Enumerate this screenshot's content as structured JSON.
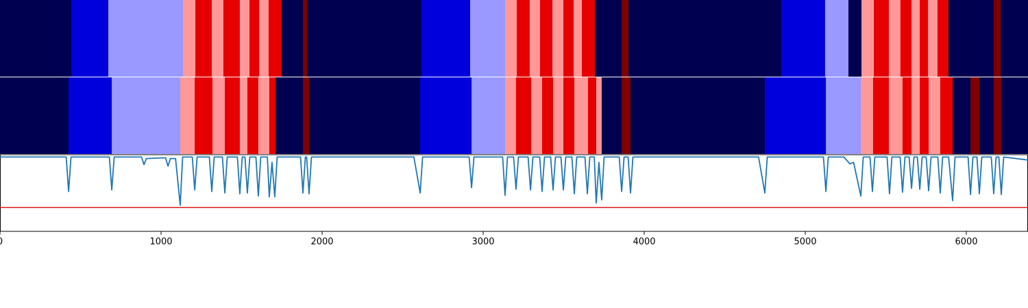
{
  "chart_data": {
    "type": "line",
    "xlim": [
      0,
      6383
    ],
    "xticks": [
      0,
      1000,
      2000,
      3000,
      4000,
      5000,
      6000
    ],
    "ylim": [
      0,
      1
    ],
    "strips": [
      {
        "edges": [
          0,
          443,
          672,
          1136,
          1213,
          1315,
          1387,
          1489,
          1549,
          1609,
          1668,
          1749,
          1881,
          1906,
          2617,
          2919,
          3136,
          3209,
          3289,
          3353,
          3430,
          3498,
          3562,
          3613,
          3694,
          3860,
          3902,
          4851,
          5123,
          5268,
          5349,
          5426,
          5519,
          5591,
          5660,
          5711,
          5762,
          5821,
          5889,
          6170,
          6213,
          6383
        ],
        "colors": [
          "#000050",
          "#0000dd",
          "#9999ff",
          "#ff9999",
          "#e60000",
          "#ff9999",
          "#e60000",
          "#ff9999",
          "#e60000",
          "#ff9999",
          "#e60000",
          "#000050",
          "#800000",
          "#000050",
          "#0000dd",
          "#9999ff",
          "#ff9999",
          "#e60000",
          "#ff9999",
          "#e60000",
          "#ff9999",
          "#e60000",
          "#ff9999",
          "#e60000",
          "#000050",
          "#800000",
          "#000050",
          "#0000dd",
          "#9999ff",
          "#000050",
          "#ff9999",
          "#e60000",
          "#ff9999",
          "#e60000",
          "#ff9999",
          "#e60000",
          "#ff9999",
          "#e60000",
          "#000050",
          "#800000",
          "#000050"
        ]
      },
      {
        "edges": [
          0,
          426,
          694,
          1119,
          1209,
          1319,
          1396,
          1489,
          1536,
          1604,
          1672,
          1711,
          1881,
          1919,
          2609,
          2928,
          3136,
          3204,
          3298,
          3366,
          3434,
          3498,
          3566,
          3651,
          3702,
          3736,
          3860,
          3915,
          4749,
          5128,
          5345,
          5421,
          5519,
          5604,
          5660,
          5711,
          5766,
          5838,
          5915,
          6026,
          6081,
          6170,
          6217,
          6383
        ],
        "colors": [
          "#000050",
          "#0000dd",
          "#9999ff",
          "#ff9999",
          "#e60000",
          "#ff9999",
          "#e60000",
          "#ff9999",
          "#e60000",
          "#ff9999",
          "#e60000",
          "#000050",
          "#800000",
          "#000050",
          "#0000dd",
          "#9999ff",
          "#ff9999",
          "#e60000",
          "#ff9999",
          "#e60000",
          "#ff9999",
          "#e60000",
          "#ff9999",
          "#e60000",
          "#ff9999",
          "#000050",
          "#800000",
          "#000050",
          "#0000dd",
          "#9999ff",
          "#ff9999",
          "#e60000",
          "#ff9999",
          "#e60000",
          "#ff9999",
          "#e60000",
          "#ff9999",
          "#e60000",
          "#000050",
          "#800000",
          "#000050",
          "#800000",
          "#000050"
        ]
      }
    ],
    "threshold": {
      "value": 0.31,
      "color": "#e41a1c"
    },
    "series": [
      {
        "color": "#1f77b4",
        "x": [
          0,
          411,
          426,
          441,
          679,
          694,
          709,
          879,
          894,
          909,
          1028,
          1043,
          1058,
          1090,
          1119,
          1134,
          1194,
          1209,
          1224,
          1300,
          1315,
          1330,
          1381,
          1396,
          1411,
          1474,
          1489,
          1504,
          1521,
          1536,
          1551,
          1589,
          1604,
          1619,
          1660,
          1672,
          1689,
          1706,
          1721,
          1866,
          1881,
          1896,
          1904,
          1919,
          1934,
          2570,
          2609,
          2624,
          2913,
          2928,
          2943,
          3121,
          3136,
          3151,
          3189,
          3204,
          3219,
          3279,
          3294,
          3309,
          3351,
          3366,
          3381,
          3419,
          3434,
          3449,
          3483,
          3498,
          3513,
          3551,
          3566,
          3581,
          3632,
          3647,
          3662,
          3690,
          3702,
          3719,
          3736,
          3751,
          3845,
          3860,
          3875,
          3900,
          3915,
          3930,
          4710,
          4749,
          4764,
          5113,
          5128,
          5143,
          5240,
          5277,
          5300,
          5345,
          5360,
          5402,
          5417,
          5432,
          5508,
          5523,
          5538,
          5589,
          5604,
          5619,
          5645,
          5660,
          5675,
          5696,
          5711,
          5726,
          5751,
          5766,
          5781,
          5823,
          5838,
          5853,
          5890,
          5915,
          5930,
          6011,
          6026,
          6041,
          6066,
          6081,
          6096,
          6155,
          6170,
          6185,
          6202,
          6217,
          6232,
          6383
        ],
        "values": [
          0.97,
          0.97,
          0.52,
          0.97,
          0.97,
          0.54,
          0.97,
          0.97,
          0.87,
          0.95,
          0.96,
          0.85,
          0.95,
          0.95,
          0.34,
          0.97,
          0.97,
          0.54,
          0.97,
          0.97,
          0.52,
          0.97,
          0.97,
          0.5,
          0.97,
          0.97,
          0.49,
          0.97,
          0.97,
          0.5,
          0.97,
          0.97,
          0.46,
          0.97,
          0.97,
          0.45,
          0.9,
          0.45,
          0.97,
          0.97,
          0.5,
          0.97,
          0.97,
          0.49,
          0.97,
          0.97,
          0.5,
          0.97,
          0.97,
          0.57,
          0.97,
          0.97,
          0.47,
          0.97,
          0.97,
          0.55,
          0.97,
          0.97,
          0.54,
          0.97,
          0.97,
          0.52,
          0.97,
          0.97,
          0.54,
          0.97,
          0.97,
          0.54,
          0.97,
          0.97,
          0.49,
          0.97,
          0.97,
          0.49,
          0.97,
          0.97,
          0.37,
          0.9,
          0.41,
          0.97,
          0.97,
          0.52,
          0.97,
          0.97,
          0.5,
          0.97,
          0.97,
          0.5,
          0.97,
          0.97,
          0.52,
          0.97,
          0.97,
          0.88,
          0.9,
          0.46,
          0.97,
          0.97,
          0.52,
          0.97,
          0.97,
          0.49,
          0.97,
          0.97,
          0.51,
          0.97,
          0.97,
          0.56,
          0.97,
          0.97,
          0.55,
          0.97,
          0.97,
          0.53,
          0.97,
          0.97,
          0.5,
          0.97,
          0.97,
          0.4,
          0.97,
          0.97,
          0.48,
          0.97,
          0.97,
          0.49,
          0.97,
          0.97,
          0.49,
          0.97,
          0.97,
          0.48,
          0.97,
          0.93
        ]
      }
    ]
  }
}
